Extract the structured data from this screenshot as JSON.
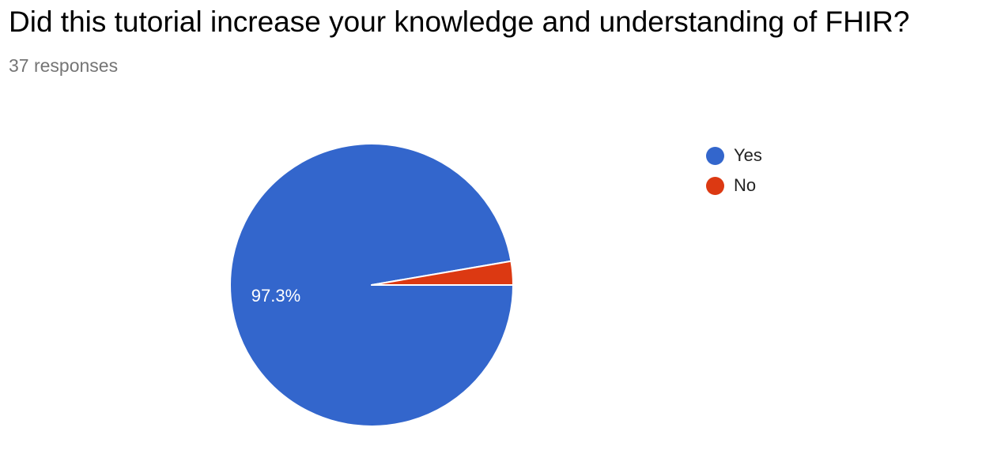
{
  "question": {
    "title": "Did this tutorial increase your knowledge and understanding of FHIR?",
    "responses": "37 responses"
  },
  "chart_data": {
    "type": "pie",
    "categories": [
      "Yes",
      "No"
    ],
    "values": [
      97.3,
      2.7
    ],
    "colors": [
      "#3366cc",
      "#dc3912"
    ],
    "data_labels": [
      "97.3%",
      ""
    ],
    "legend_position": "right"
  }
}
